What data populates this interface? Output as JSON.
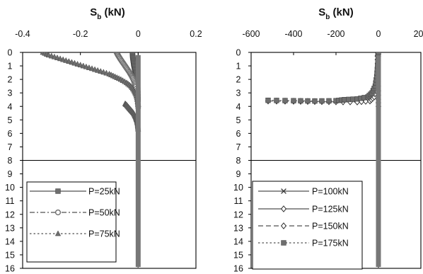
{
  "chart_data": [
    {
      "type": "line",
      "xlabel_main": "S",
      "xlabel_sub": "b",
      "xlabel_unit": " (kN)",
      "xlim": [
        -0.4,
        0.2
      ],
      "x_ticks": [
        "-0.4",
        "-0.2",
        "0",
        "0.2"
      ],
      "x_tick_values": [
        -0.4,
        -0.2,
        0,
        0.2
      ],
      "ylim": [
        0,
        16
      ],
      "y_ticks": [
        "0",
        "1",
        "2",
        "3",
        "4",
        "5",
        "6",
        "7",
        "8",
        "9",
        "10",
        "11",
        "12",
        "13",
        "14",
        "15",
        "16"
      ],
      "y_inverted": true,
      "hline_at": 8,
      "legend_position": "bottom-left",
      "series": [
        {
          "name": "P=25kN",
          "marker": "square",
          "dash": "solid",
          "color": "#6e6e6e",
          "x": [
            -0.02,
            -0.019,
            -0.017,
            -0.015,
            -0.012,
            -0.009,
            -0.006,
            -0.004,
            -0.002,
            -0.001,
            0.0,
            0.0,
            0.0
          ],
          "y": [
            0.0,
            0.3,
            0.6,
            0.9,
            1.2,
            1.5,
            1.8,
            2.1,
            2.4,
            2.8,
            3.5,
            8.0,
            16.0
          ]
        },
        {
          "name": "P=50kN",
          "marker": "circle",
          "dash": "dashdot",
          "color": "#6e6e6e",
          "x": [
            -0.075,
            -0.07,
            -0.063,
            -0.055,
            -0.047,
            -0.039,
            -0.031,
            -0.024,
            -0.018,
            -0.012,
            -0.008,
            -0.004,
            -0.002,
            0.0,
            0.0,
            0.0
          ],
          "y": [
            0.0,
            0.2,
            0.45,
            0.7,
            0.95,
            1.2,
            1.45,
            1.7,
            1.95,
            2.25,
            2.55,
            3.0,
            3.5,
            4.0,
            8.0,
            16.0
          ]
        },
        {
          "name": "P=75kN",
          "marker": "triangle",
          "dash": "dotted",
          "color": "#6e6e6e",
          "x": [
            -0.33,
            -0.31,
            -0.28,
            -0.25,
            -0.22,
            -0.19,
            -0.16,
            -0.13,
            -0.1,
            -0.08,
            -0.06,
            -0.04,
            -0.025,
            -0.015,
            -0.008,
            -0.003,
            0.0,
            0.0,
            0.0
          ],
          "y": [
            0.0,
            0.2,
            0.4,
            0.6,
            0.8,
            1.0,
            1.2,
            1.4,
            1.6,
            1.8,
            2.0,
            2.25,
            2.5,
            2.8,
            3.1,
            3.5,
            4.0,
            8.0,
            16.0
          ]
        },
        {
          "name": "",
          "marker": "triangle",
          "dash": "dotted",
          "color": "#6e6e6e",
          "x": [
            -0.045,
            -0.04,
            -0.034,
            -0.028,
            -0.022,
            -0.016,
            -0.011,
            -0.007,
            -0.004,
            -0.002,
            -0.001,
            0.0
          ],
          "y": [
            3.8,
            3.9,
            4.05,
            4.2,
            4.35,
            4.5,
            4.7,
            4.9,
            5.1,
            5.3,
            5.5,
            5.7
          ]
        }
      ]
    },
    {
      "type": "line",
      "xlabel_main": "S",
      "xlabel_sub": "b",
      "xlabel_unit": " (kN)",
      "xlim": [
        -600,
        200
      ],
      "x_ticks": [
        "-600",
        "-400",
        "-200",
        "0",
        "200"
      ],
      "x_tick_values": [
        -600,
        -400,
        -200,
        0,
        200
      ],
      "ylim": [
        0,
        16
      ],
      "y_ticks": [
        "0",
        "1",
        "2",
        "3",
        "4",
        "5",
        "6",
        "7",
        "8",
        "9",
        "10",
        "11",
        "12",
        "13",
        "14",
        "15",
        "16"
      ],
      "y_inverted": true,
      "hline_at": 8,
      "legend_position": "bottom-left",
      "series": [
        {
          "name": "P=100kN",
          "marker": "x",
          "dash": "solid",
          "color": "#6e6e6e",
          "x": [
            -3,
            -2,
            -1,
            0,
            0,
            0
          ],
          "y": [
            0.0,
            1.0,
            2.0,
            3.0,
            8.0,
            16.0
          ]
        },
        {
          "name": "P=125kN",
          "marker": "diamond",
          "dash": "solid",
          "color": "#6e6e6e",
          "x": [
            -5,
            -4,
            -3,
            -2,
            -1,
            0,
            0
          ],
          "y": [
            0.0,
            0.8,
            1.6,
            2.4,
            3.2,
            4.0,
            16.0
          ]
        },
        {
          "name": "P=150kN",
          "marker": "diamond",
          "dash": "dashed",
          "color": "#6e6e6e",
          "x": [
            -520,
            -400,
            -300,
            -200,
            -100,
            -40,
            -20,
            -10,
            -5,
            -2,
            0,
            0
          ],
          "y": [
            3.6,
            3.62,
            3.64,
            3.66,
            3.67,
            3.6,
            3.3,
            2.6,
            1.8,
            0.9,
            0.0,
            16.0
          ]
        },
        {
          "name": "P=175kN",
          "marker": "square",
          "dash": "dotted",
          "color": "#6e6e6e",
          "x": [
            -520,
            -400,
            -300,
            -200,
            -160,
            -100,
            -50,
            -30,
            -15,
            -8,
            -4,
            0,
            0
          ],
          "y": [
            3.55,
            3.58,
            3.6,
            3.58,
            3.5,
            3.45,
            3.3,
            3.0,
            2.5,
            1.8,
            1.0,
            0.0,
            16.0
          ]
        }
      ]
    }
  ]
}
